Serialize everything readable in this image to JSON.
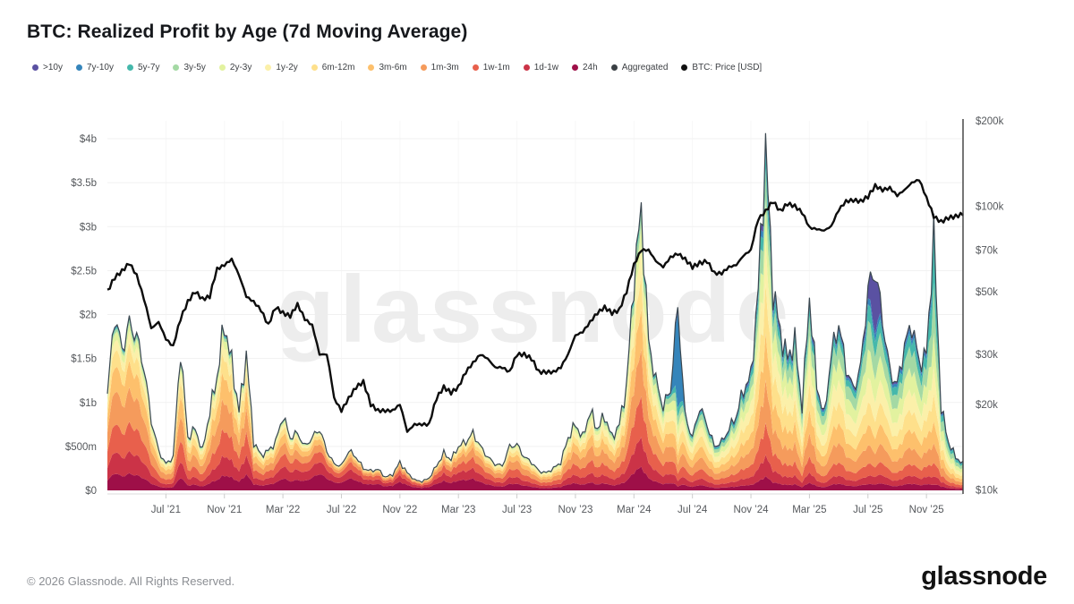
{
  "title": "BTC: Realized Profit by Age (7d Moving Average)",
  "watermark": "glassnode",
  "footer": {
    "copyright": "© 2026 Glassnode. All Rights Reserved.",
    "brand": "glassnode"
  },
  "colors": {
    "price_line": "#0d0d0d",
    "aggregated_line": "#3a4750",
    "grid_line": "#f1f1f1",
    "axis_text": "#55585c",
    "right_axis_line": "#3c3c3c",
    "bottom_axis_line": "#dddddd",
    "watermark": "#ededed"
  },
  "legend": [
    {
      "label": ">10y",
      "color": "#5a51a2"
    },
    {
      "label": "7y-10y",
      "color": "#3585bb"
    },
    {
      "label": "5y-7y",
      "color": "#45b8ab"
    },
    {
      "label": "3y-5y",
      "color": "#a4d9a4"
    },
    {
      "label": "2y-3y",
      "color": "#e2f29f"
    },
    {
      "label": "1y-2y",
      "color": "#fbf0a9"
    },
    {
      "label": "6m-12m",
      "color": "#fee08b"
    },
    {
      "label": "3m-6m",
      "color": "#fdc06c"
    },
    {
      "label": "1m-3m",
      "color": "#f59b5c"
    },
    {
      "label": "1w-1m",
      "color": "#e8604c"
    },
    {
      "label": "1d-1w",
      "color": "#cb3347"
    },
    {
      "label": "24h",
      "color": "#9e0f48"
    },
    {
      "label": "Aggregated",
      "color": "#3a3f44"
    },
    {
      "label": "BTC: Price [USD]",
      "color": "#101010"
    }
  ],
  "chart_data": {
    "type": "area",
    "subtype": "stacked-area-with-log-price-line",
    "title": "BTC: Realized Profit by Age (7d Moving Average)",
    "grid": true,
    "legend_position": "top",
    "left_axis": {
      "unit": "USD",
      "ticks": [
        {
          "label": "$4b",
          "value": 4
        },
        {
          "label": "$3.5b",
          "value": 3.5
        },
        {
          "label": "$3b",
          "value": 3
        },
        {
          "label": "$2.5b",
          "value": 2.5
        },
        {
          "label": "$2b",
          "value": 2
        },
        {
          "label": "$1.5b",
          "value": 1.5
        },
        {
          "label": "$1b",
          "value": 1
        },
        {
          "label": "$500m",
          "value": 0.5
        },
        {
          "label": "$0",
          "value": 0
        }
      ],
      "ylim": [
        0,
        4.2
      ]
    },
    "right_axis": {
      "unit": "USD",
      "scale": "log",
      "ticks": [
        {
          "label": "$200k",
          "value": 200
        },
        {
          "label": "$100k",
          "value": 100
        },
        {
          "label": "$70k",
          "value": 70
        },
        {
          "label": "$50k",
          "value": 50
        },
        {
          "label": "$30k",
          "value": 30
        },
        {
          "label": "$20k",
          "value": 20
        },
        {
          "label": "$10k",
          "value": 10
        }
      ],
      "ylim_kusd": [
        10,
        200
      ]
    },
    "x_axis": {
      "samples_per_month": 2,
      "first_sample": "Mar 2021",
      "last_sample": "Jan 2026",
      "ticks": [
        {
          "label": "Jul ’21",
          "month_index": 4
        },
        {
          "label": "Nov ’21",
          "month_index": 8
        },
        {
          "label": "Mar ’22",
          "month_index": 12
        },
        {
          "label": "Jul ’22",
          "month_index": 16
        },
        {
          "label": "Nov ’22",
          "month_index": 20
        },
        {
          "label": "Mar ’23",
          "month_index": 24
        },
        {
          "label": "Jul ’23",
          "month_index": 28
        },
        {
          "label": "Nov ’23",
          "month_index": 32
        },
        {
          "label": "Mar ’24",
          "month_index": 36
        },
        {
          "label": "Jul ’24",
          "month_index": 40
        },
        {
          "label": "Nov ’24",
          "month_index": 44
        },
        {
          "label": "Mar ’25",
          "month_index": 48
        },
        {
          "label": "Jul ’25",
          "month_index": 52
        },
        {
          "label": "Nov ’25",
          "month_index": 56
        }
      ]
    },
    "bands_bottom_to_top": [
      "24h",
      "1d-1w",
      "1w-1m",
      "1m-3m",
      "3m-6m",
      "6m-12m",
      "1y-2y",
      "2y-3y",
      "3y-5y",
      "5y-7y",
      "7y-10y",
      ">10y"
    ],
    "band_colors": [
      "#9e0f48",
      "#cb3347",
      "#e8604c",
      "#f59b5c",
      "#fdc06c",
      "#fee08b",
      "#fbf0a9",
      "#e2f29f",
      "#a4d9a4",
      "#45b8ab",
      "#3585bb",
      "#5a51a2"
    ],
    "aggregated_total_billions": [
      1.1,
      2.0,
      1.6,
      1.9,
      1.75,
      1.4,
      0.8,
      0.45,
      0.3,
      0.38,
      1.6,
      0.6,
      0.7,
      0.45,
      0.9,
      1.3,
      1.9,
      1.45,
      0.9,
      1.55,
      0.55,
      0.4,
      0.45,
      0.55,
      0.85,
      0.6,
      0.65,
      0.5,
      0.6,
      0.7,
      0.45,
      0.3,
      0.28,
      0.45,
      0.38,
      0.25,
      0.22,
      0.24,
      0.15,
      0.18,
      0.32,
      0.2,
      0.12,
      0.1,
      0.14,
      0.28,
      0.42,
      0.35,
      0.5,
      0.55,
      0.65,
      0.5,
      0.38,
      0.3,
      0.28,
      0.5,
      0.52,
      0.38,
      0.32,
      0.22,
      0.2,
      0.25,
      0.32,
      0.6,
      0.75,
      0.6,
      0.9,
      0.7,
      0.85,
      0.6,
      0.75,
      1.2,
      2.4,
      3.2,
      1.7,
      1.25,
      0.95,
      1.15,
      2.1,
      0.85,
      0.6,
      0.95,
      0.75,
      0.5,
      0.55,
      0.7,
      0.85,
      1.15,
      1.3,
      2.3,
      3.9,
      2.3,
      1.8,
      1.5,
      1.7,
      0.95,
      2.2,
      1.2,
      0.85,
      1.55,
      1.9,
      1.4,
      1.15,
      1.4,
      2.3,
      2.5,
      1.95,
      1.35,
      1.2,
      1.65,
      1.9,
      1.45,
      1.55,
      2.9,
      0.95,
      0.55,
      0.38,
      0.3
    ],
    "btc_price_kusd": [
      50,
      56,
      59,
      63,
      57,
      47,
      37,
      39,
      34,
      32,
      40,
      46,
      50,
      47,
      48,
      60,
      62,
      65,
      57,
      48,
      46,
      43,
      38,
      44,
      42,
      41,
      45,
      40,
      38,
      30,
      30,
      21,
      19,
      21,
      23,
      24,
      20,
      19,
      19,
      19,
      20,
      16,
      17,
      17,
      17,
      21,
      23,
      22,
      23,
      26,
      28,
      30,
      29,
      27,
      27,
      26,
      30,
      30,
      29,
      26,
      26,
      26,
      27,
      30,
      35,
      36,
      39,
      42,
      44,
      42,
      43,
      50,
      62,
      70,
      70,
      64,
      61,
      66,
      68,
      65,
      61,
      63,
      64,
      58,
      58,
      61,
      62,
      67,
      70,
      90,
      96,
      104,
      96,
      102,
      100,
      95,
      84,
      83,
      82,
      85,
      97,
      104,
      105,
      104,
      108,
      118,
      114,
      116,
      109,
      114,
      121,
      124,
      107,
      92,
      88,
      91,
      92,
      94
    ],
    "composition_keyframes": [
      {
        "i": 0,
        "weights": [
          10,
          13,
          17,
          20,
          15,
          10,
          6,
          5,
          2,
          1,
          0.5,
          0.5
        ]
      },
      {
        "i": 16,
        "weights": [
          9,
          12,
          16,
          18,
          16,
          12,
          8,
          5,
          2,
          1,
          0.5,
          0.5
        ]
      },
      {
        "i": 26,
        "weights": [
          18,
          18,
          18,
          15,
          12,
          8,
          5,
          3,
          1.5,
          1,
          0.3,
          0.2
        ]
      },
      {
        "i": 30,
        "weights": [
          30,
          22,
          18,
          12,
          8,
          5,
          3,
          1,
          0.5,
          0.3,
          0.1,
          0.1
        ]
      },
      {
        "i": 42,
        "weights": [
          30,
          23,
          19,
          12,
          8,
          4,
          2.5,
          1,
          0.3,
          0.1,
          0.05,
          0.05
        ]
      },
      {
        "i": 54,
        "weights": [
          15,
          15,
          18,
          18,
          12,
          9,
          7,
          4,
          1.5,
          0.4,
          0.05,
          0.05
        ]
      },
      {
        "i": 66,
        "weights": [
          10,
          12,
          16,
          18,
          14,
          11,
          9,
          6,
          3,
          0.8,
          0.1,
          0.1
        ]
      },
      {
        "i": 74,
        "weights": [
          8,
          10,
          14,
          16,
          14,
          12,
          10,
          8,
          5,
          2,
          0.5,
          0.5
        ]
      },
      {
        "i": 90,
        "weights": [
          4,
          6,
          9,
          12,
          13,
          14,
          12,
          11,
          9,
          5,
          2.5,
          2.5
        ]
      },
      {
        "i": 100,
        "weights": [
          4,
          5,
          8,
          12,
          12,
          13,
          13,
          13,
          11,
          5,
          2,
          2
        ]
      },
      {
        "i": 110,
        "weights": [
          4,
          5,
          7,
          10,
          11,
          12,
          12,
          13,
          13,
          8,
          3,
          2
        ]
      },
      {
        "i": 117,
        "weights": [
          5,
          6,
          8,
          11,
          11,
          12,
          12,
          12,
          12,
          7,
          2,
          2
        ]
      }
    ],
    "composition_overrides": [
      {
        "i": 78,
        "weights": [
          2,
          3,
          4,
          5,
          5,
          6,
          5,
          5,
          5,
          5,
          52,
          3
        ]
      },
      {
        "i": 104,
        "weights": [
          3,
          4,
          6,
          9,
          10,
          11,
          12,
          14,
          14,
          8,
          3,
          6
        ]
      },
      {
        "i": 105,
        "weights": [
          3,
          4,
          5,
          7,
          8,
          9,
          10,
          12,
          12,
          8,
          4,
          28
        ]
      },
      {
        "i": 113,
        "weights": [
          2,
          3,
          5,
          7,
          8,
          10,
          10,
          12,
          18,
          18,
          4,
          3
        ]
      }
    ]
  }
}
